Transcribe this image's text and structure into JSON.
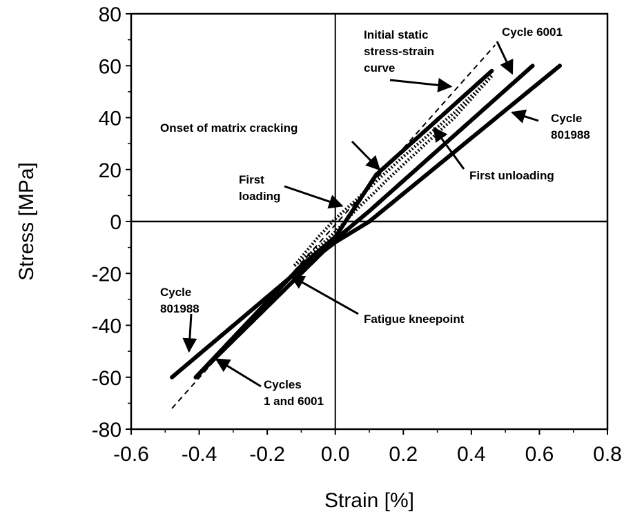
{
  "chart_data": {
    "type": "line",
    "title": "",
    "xlabel": "Strain [%]",
    "ylabel": "Stress [MPa]",
    "xlim": [
      -0.6,
      0.8
    ],
    "ylim": [
      -80,
      80
    ],
    "x_ticks": [
      -0.6,
      -0.4,
      -0.2,
      0.0,
      0.2,
      0.4,
      0.6,
      0.8
    ],
    "x_tick_labels": [
      "-0.6",
      "-0.4",
      "-0.2",
      "0.0",
      "0.2",
      "0.4",
      "0.6",
      "0.8"
    ],
    "y_ticks": [
      80,
      60,
      40,
      20,
      0,
      -20,
      -40,
      -60,
      -80
    ],
    "y_tick_labels": [
      "80",
      "60",
      "40",
      "20",
      "0",
      "-20",
      "-40",
      "-60",
      "-80"
    ],
    "zero_lines": true,
    "grid": false,
    "series": [
      {
        "name": "Initial static stress-strain curve",
        "style": "dashed",
        "x": [
          -0.48,
          0.47
        ],
        "y": [
          -72,
          68
        ]
      },
      {
        "name": "Cycles 1 and 6001",
        "style": "thick",
        "x": [
          -0.41,
          -0.1,
          0.0,
          0.12,
          0.46
        ],
        "y": [
          -60,
          -17,
          -6,
          18,
          58
        ]
      },
      {
        "name": "Cycle 6001",
        "style": "thick",
        "x": [
          -0.41,
          0.0,
          0.1,
          0.58
        ],
        "y": [
          -60,
          -7,
          4,
          60
        ]
      },
      {
        "name": "Cycle 801988",
        "style": "thick",
        "x": [
          -0.48,
          -0.1,
          0.0,
          0.1,
          0.66
        ],
        "y": [
          -60,
          -18,
          -8,
          0,
          60
        ]
      },
      {
        "name": "First unloading",
        "style": "dotted",
        "x": [
          0.46,
          0.35,
          0.2,
          0.05,
          0.0,
          -0.05,
          -0.12
        ],
        "y": [
          56,
          40,
          22,
          3,
          -4,
          -10,
          -17
        ]
      },
      {
        "name": "First loading",
        "style": "dotted",
        "x": [
          -0.12,
          -0.05,
          0.0,
          0.1,
          0.2,
          0.35,
          0.46
        ],
        "y": [
          -17,
          -6,
          1,
          13,
          25,
          42,
          56
        ]
      }
    ],
    "annotations": [
      {
        "lines": [
          "Initial static",
          "stress-strain",
          "curve"
        ],
        "point": [
          0.34,
          52
        ]
      },
      {
        "lines": [
          "Cycle 6001"
        ],
        "point": [
          0.52,
          57
        ]
      },
      {
        "lines": [
          "Cycle",
          "801988"
        ],
        "point": [
          0.52,
          42
        ]
      },
      {
        "lines": [
          "Onset of matrix cracking"
        ],
        "point": [
          0.13,
          20
        ]
      },
      {
        "lines": [
          "First unloading"
        ],
        "point": [
          0.29,
          36
        ]
      },
      {
        "lines": [
          "First",
          "loading"
        ],
        "point": [
          0.02,
          6
        ]
      },
      {
        "lines": [
          "Fatigue kneepoint"
        ],
        "point": [
          -0.13,
          -21
        ]
      },
      {
        "lines": [
          "Cycle",
          "801988"
        ],
        "point": [
          -0.43,
          -50
        ]
      },
      {
        "lines": [
          "Cycles",
          "1 and 6001"
        ],
        "point": [
          -0.35,
          -53
        ]
      }
    ]
  }
}
